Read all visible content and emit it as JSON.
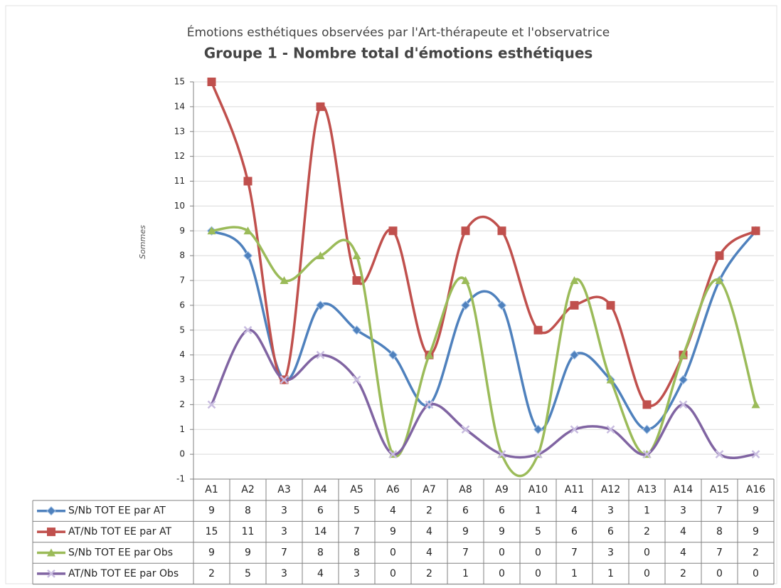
{
  "chart_data": {
    "type": "line",
    "title": "Émotions esthétiques observées par l'Art-thérapeute et l'observatrice",
    "subtitle": "Groupe 1 - Nombre total d'émotions esthétiques",
    "y_label": "Sommes",
    "categories": [
      "A1",
      "A2",
      "A3",
      "A4",
      "A5",
      "A6",
      "A7",
      "A8",
      "A9",
      "A10",
      "A11",
      "A12",
      "A13",
      "A14",
      "A15",
      "A16"
    ],
    "series": [
      {
        "name": "S/Nb TOT EE par AT",
        "color": "#4f81bd",
        "marker": "diamond",
        "values": [
          9,
          8,
          3,
          6,
          5,
          4,
          2,
          6,
          6,
          1,
          4,
          3,
          1,
          3,
          7,
          9
        ]
      },
      {
        "name": "AT/Nb TOT EE par AT",
        "color": "#c0504d",
        "marker": "square",
        "values": [
          15,
          11,
          3,
          14,
          7,
          9,
          4,
          9,
          9,
          5,
          6,
          6,
          2,
          4,
          8,
          9
        ]
      },
      {
        "name": "S/Nb TOT EE par Obs",
        "color": "#9bbb59",
        "marker": "triangle",
        "values": [
          9,
          9,
          7,
          8,
          8,
          0,
          4,
          7,
          0,
          0,
          7,
          3,
          0,
          4,
          7,
          2
        ]
      },
      {
        "name": "AT/Nb TOT EE par Obs",
        "color": "#8064a2",
        "marker": "x",
        "values": [
          2,
          5,
          3,
          4,
          3,
          0,
          2,
          1,
          0,
          0,
          1,
          1,
          0,
          2,
          0,
          0
        ]
      }
    ],
    "ylim": [
      -1,
      15
    ],
    "yticks": [
      -1,
      0,
      1,
      2,
      3,
      4,
      5,
      6,
      7,
      8,
      9,
      10,
      11,
      12,
      13,
      14,
      15
    ],
    "grid": true,
    "smooth": true,
    "data_table": true
  }
}
